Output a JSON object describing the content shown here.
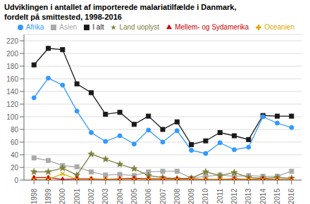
{
  "chart_data": {
    "type": "line",
    "title": "Udviklingen i antallet af importerede malariatilfælde i Danmark,",
    "subtitle": "fordelt på smittested, 1998-2016",
    "x": [
      1998,
      1999,
      2000,
      2001,
      2002,
      2003,
      2004,
      2005,
      2006,
      2007,
      2008,
      2009,
      2010,
      2011,
      2012,
      2013,
      2014,
      2015,
      2016
    ],
    "series": [
      {
        "name": "I alt",
        "color": "#1a1a1a",
        "marker": "square",
        "values": [
          182,
          208,
          206,
          152,
          138,
          104,
          107,
          88,
          101,
          80,
          92,
          56,
          62,
          75,
          70,
          64,
          102,
          101,
          101
        ]
      },
      {
        "name": "Afrika",
        "color": "#3399ff",
        "marker": "circle",
        "values": [
          130,
          161,
          150,
          109,
          75,
          61,
          70,
          57,
          79,
          60,
          78,
          47,
          42,
          59,
          48,
          52,
          100,
          90,
          83
        ]
      },
      {
        "name": "Asien",
        "color": "#aaaaaa",
        "marker": "square",
        "values": [
          35,
          31,
          23,
          21,
          13,
          8,
          9,
          7,
          13,
          14,
          14,
          3,
          6,
          8,
          6,
          7,
          6,
          6,
          14
        ]
      },
      {
        "name": "Land uoplyst",
        "color": "#808040",
        "marker": "star",
        "values": [
          13,
          13,
          19,
          8,
          41,
          33,
          25,
          18,
          7,
          4,
          2,
          3,
          13,
          7,
          12,
          4,
          3,
          4,
          3
        ]
      },
      {
        "name": "Mellem- og Sydamerika",
        "color": "#cc0000",
        "marker": "triangle",
        "values": [
          4,
          4,
          1,
          2,
          2,
          1,
          2,
          3,
          2,
          2,
          2,
          2,
          1,
          1,
          2,
          1,
          2,
          1,
          1
        ]
      },
      {
        "name": "Oceanien",
        "color": "#ddaa00",
        "marker": "cross",
        "values": [
          1,
          1,
          10,
          1,
          1,
          1,
          1,
          1,
          1,
          1,
          1,
          1,
          1,
          1,
          1,
          1,
          1,
          1,
          0
        ]
      }
    ],
    "xlim": [
      1997.3,
      2016.7
    ],
    "xticks": [
      1998,
      1999,
      2000,
      2001,
      2002,
      2003,
      2004,
      2005,
      2006,
      2007,
      2008,
      2009,
      2010,
      2011,
      2012,
      2013,
      2014,
      2015,
      2016
    ],
    "ylim": [
      0,
      230
    ],
    "yticks": [
      0,
      20,
      40,
      60,
      80,
      100,
      120,
      140,
      160,
      180,
      200,
      220
    ],
    "grid": true,
    "legend": "upper right"
  }
}
